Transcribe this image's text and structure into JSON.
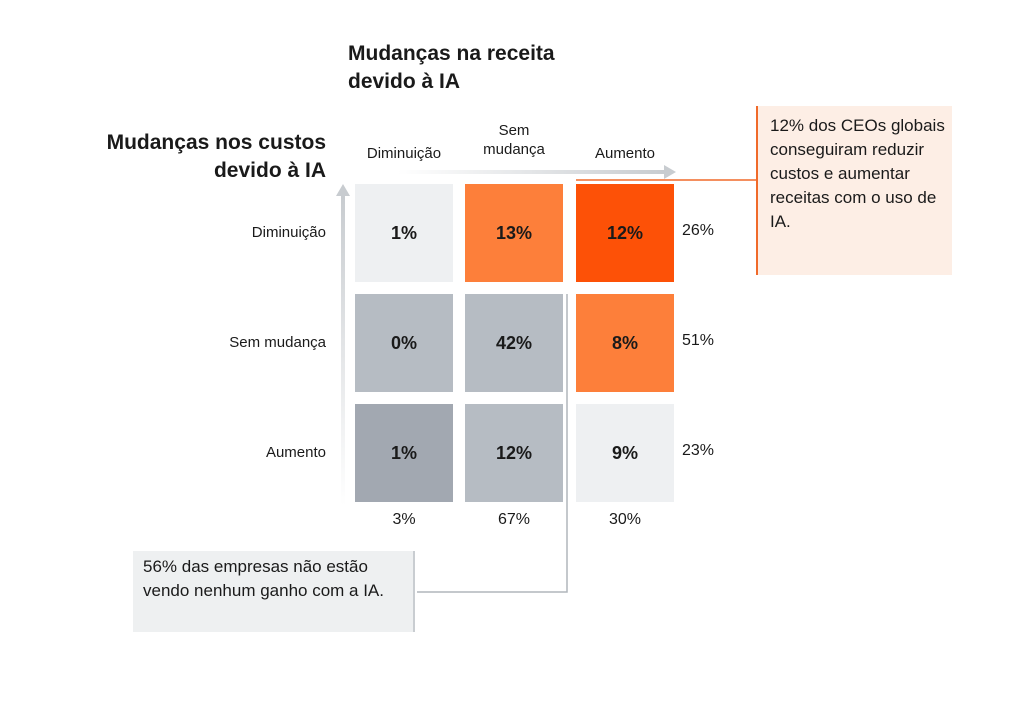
{
  "chart_data": {
    "type": "heatmap",
    "title_x": "Mudanças na receita devido à IA",
    "title_y": "Mudanças nos custos devido à IA",
    "x_categories": [
      "Diminuição",
      "Sem mudança",
      "Aumento"
    ],
    "y_categories": [
      "Diminuição",
      "Sem mudança",
      "Aumento"
    ],
    "values": [
      [
        "1%",
        "13%",
        "12%"
      ],
      [
        "0%",
        "42%",
        "8%"
      ],
      [
        "1%",
        "12%",
        "9%"
      ]
    ],
    "colors": [
      [
        "#eef0f2",
        "#fd7f3a",
        "#fd5107"
      ],
      [
        "#b6bcc3",
        "#b6bcc3",
        "#fd7f3a"
      ],
      [
        "#a2a8b1",
        "#b6bcc3",
        "#eef0f2"
      ]
    ],
    "row_totals": [
      "26%",
      "51%",
      "23%"
    ],
    "col_totals": [
      "3%",
      "67%",
      "30%"
    ],
    "annotations": [
      "12% dos CEOs globais conseguiram reduzir custos e aumentar receitas com o uso de IA.",
      "56% das empresas não estão vendo nenhum ganho com a IA."
    ]
  }
}
